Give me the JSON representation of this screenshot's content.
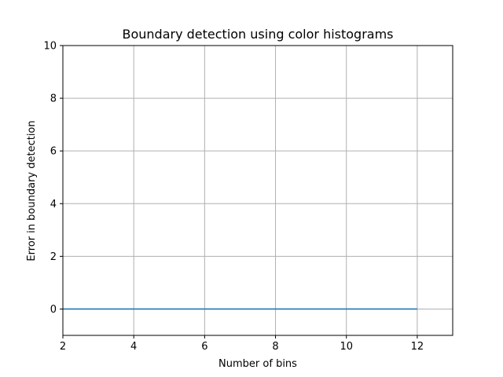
{
  "chart_data": {
    "type": "line",
    "title": "Boundary detection using color histograms",
    "xlabel": "Number of bins",
    "ylabel": "Error in boundary detection",
    "xlim": [
      2,
      13
    ],
    "ylim": [
      -1,
      10
    ],
    "xticks": [
      2,
      4,
      6,
      8,
      10,
      12
    ],
    "yticks": [
      0,
      2,
      4,
      6,
      8,
      10
    ],
    "grid": true,
    "series": [
      {
        "color": "#1f77b4",
        "x": [
          2,
          3,
          4,
          5,
          6,
          7,
          8,
          9,
          10,
          11,
          12
        ],
        "y": [
          0,
          0,
          0,
          0,
          0,
          0,
          0,
          0,
          0,
          0,
          0
        ]
      }
    ]
  }
}
